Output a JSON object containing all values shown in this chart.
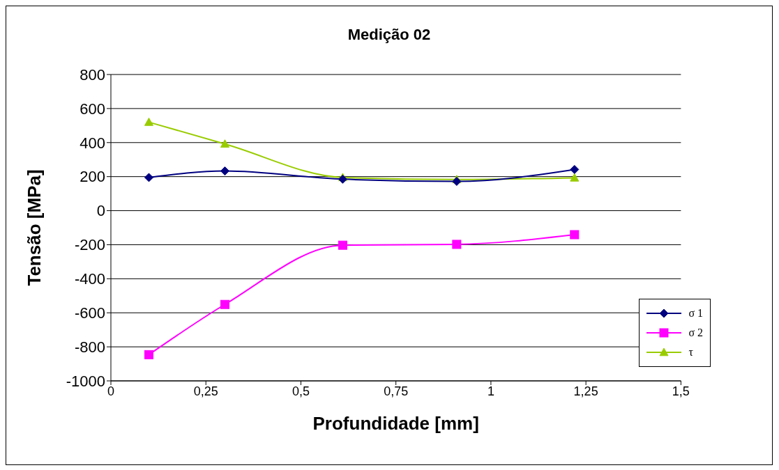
{
  "chart_data": {
    "type": "line",
    "title": "Medição 02",
    "xlabel": "Profundidade [mm]",
    "ylabel": "Tensão [MPa]",
    "x": [
      0.1,
      0.3,
      0.61,
      0.91,
      1.22
    ],
    "series": [
      {
        "name": "σ 1",
        "color": "#000080",
        "marker": "diamond",
        "values": [
          195,
          233,
          185,
          172,
          242
        ]
      },
      {
        "name": "σ 2",
        "color": "#ff00ff",
        "marker": "square",
        "values": [
          -846,
          -551,
          -203,
          -198,
          -141
        ]
      },
      {
        "name": "τ",
        "color": "#99cc00",
        "marker": "triangle",
        "values": [
          520,
          392,
          195,
          183,
          193
        ]
      }
    ],
    "xlim": [
      0,
      1.5
    ],
    "xticks": [
      {
        "value": 0,
        "label": "0"
      },
      {
        "value": 0.25,
        "label": "0,25"
      },
      {
        "value": 0.5,
        "label": "0,5"
      },
      {
        "value": 0.75,
        "label": "0,75"
      },
      {
        "value": 1,
        "label": "1"
      },
      {
        "value": 1.25,
        "label": "1,25"
      },
      {
        "value": 1.5,
        "label": "1,5"
      }
    ],
    "ylim": [
      -1000,
      800
    ],
    "yticks": [
      -1000,
      -800,
      -600,
      -400,
      -200,
      0,
      200,
      400,
      600,
      800
    ],
    "grid": "y",
    "legend": "bottom right"
  }
}
